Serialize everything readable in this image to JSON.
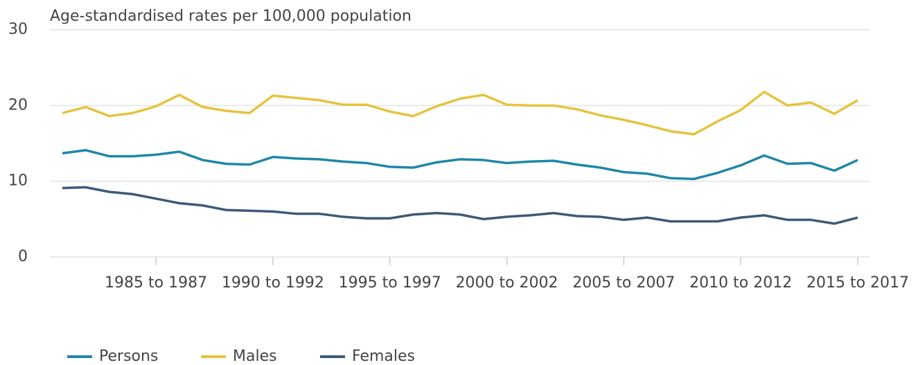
{
  "chart_data": {
    "type": "line",
    "title": "Age-standardised rates per 100,000 population",
    "categories": [
      null,
      null,
      null,
      null,
      "1985 to 1987",
      null,
      null,
      null,
      null,
      "1990 to 1992",
      null,
      null,
      null,
      null,
      "1995 to 1997",
      null,
      null,
      null,
      null,
      "2000 to 2002",
      null,
      null,
      null,
      null,
      "2005 to 2007",
      null,
      null,
      null,
      null,
      "2010 to 2012",
      null,
      null,
      null,
      null,
      "2015 to 2017"
    ],
    "series": [
      {
        "name": "Persons",
        "color": "#1f87a8",
        "values": [
          13.7,
          14.1,
          13.3,
          13.3,
          13.5,
          13.9,
          12.8,
          12.3,
          12.2,
          13.2,
          13.0,
          12.9,
          12.6,
          12.4,
          11.9,
          11.8,
          12.5,
          12.9,
          12.8,
          12.4,
          12.6,
          12.7,
          12.2,
          11.8,
          11.2,
          11.0,
          10.4,
          10.3,
          11.1,
          12.1,
          13.4,
          12.3,
          12.4,
          11.4,
          12.8
        ]
      },
      {
        "name": "Males",
        "color": "#e6c33d",
        "values": [
          19.0,
          19.8,
          18.6,
          19.0,
          19.9,
          21.4,
          19.8,
          19.3,
          19.0,
          21.3,
          21.0,
          20.7,
          20.1,
          20.1,
          19.2,
          18.6,
          19.9,
          20.9,
          21.4,
          20.1,
          20.0,
          20.0,
          19.5,
          18.7,
          18.1,
          17.4,
          16.6,
          16.2,
          17.9,
          19.4,
          21.8,
          20.0,
          20.4,
          18.9,
          20.7
        ]
      },
      {
        "name": "Females",
        "color": "#3c5a78",
        "values": [
          9.1,
          9.2,
          8.6,
          8.3,
          7.7,
          7.1,
          6.8,
          6.2,
          6.1,
          6.0,
          5.7,
          5.7,
          5.3,
          5.1,
          5.1,
          5.6,
          5.8,
          5.6,
          5.0,
          5.3,
          5.5,
          5.8,
          5.4,
          5.3,
          4.9,
          5.2,
          4.7,
          4.7,
          4.7,
          5.2,
          5.5,
          4.9,
          4.9,
          4.4,
          5.2
        ]
      }
    ],
    "ylim": [
      0,
      30
    ],
    "yticks": [
      0,
      10,
      20,
      30
    ],
    "grid": true,
    "legend": "bottom-left"
  }
}
